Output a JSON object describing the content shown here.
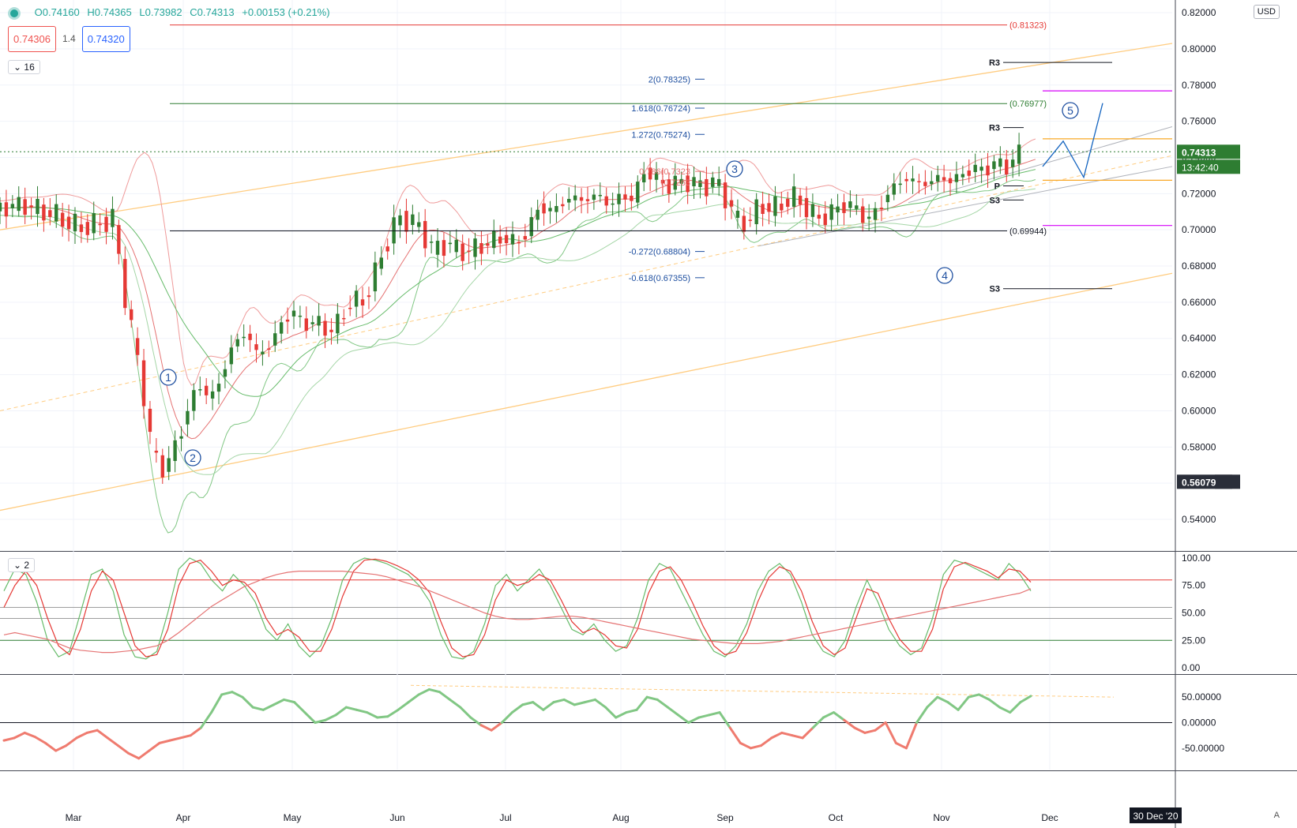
{
  "header": {
    "ohlc": {
      "open": "O0.74160",
      "high": "H0.74365",
      "low": "L0.73982",
      "close": "C0.74313",
      "change": "+0.00153 (+0.21%)"
    },
    "sell_price": "0.74306",
    "spread": "1.4",
    "buy_price": "0.74320",
    "main_pane_label": "16",
    "stoch_pane_label": "2",
    "currency": "USD",
    "auto_label": "A"
  },
  "colors": {
    "up": "#2e7d32",
    "down": "#e53935",
    "bb_red": "#ef9a9a",
    "bb_green": "#81c784",
    "fib": "#1e4fa0",
    "orange": "#ffcc80",
    "accent": "#26a69a"
  },
  "chart_data": [
    {
      "type": "candlestick",
      "symbol_pair": "",
      "x_ticks": [
        "Mar",
        "Apr",
        "May",
        "Jun",
        "Jul",
        "Aug",
        "Sep",
        "Oct",
        "Nov",
        "Dec"
      ],
      "x_highlight": "30 Dec '20",
      "y_ticks": [
        "0.82000",
        "0.80000",
        "0.78000",
        "0.76000",
        "0.74000",
        "0.72000",
        "0.70000",
        "0.68000",
        "0.66000",
        "0.64000",
        "0.62000",
        "0.60000",
        "0.58000",
        "0.56000",
        "0.54000"
      ],
      "ylim": [
        0.523,
        0.827
      ],
      "last_price": "0.74313",
      "countdown": "13:42:40",
      "crosshair_price": "0.56079",
      "crosshair_value": 0.5608,
      "close_path": [
        [
          0,
          0.712
        ],
        [
          6,
          0.714
        ],
        [
          14,
          0.708
        ],
        [
          20,
          0.701
        ],
        [
          25,
          0.703
        ],
        [
          29,
          0.706
        ],
        [
          32,
          0.663
        ],
        [
          36,
          0.62
        ],
        [
          39,
          0.577
        ],
        [
          42,
          0.567
        ],
        [
          45,
          0.581
        ],
        [
          48,
          0.6
        ],
        [
          51,
          0.615
        ],
        [
          54,
          0.606
        ],
        [
          57,
          0.621
        ],
        [
          60,
          0.638
        ],
        [
          63,
          0.643
        ],
        [
          66,
          0.631
        ],
        [
          69,
          0.636
        ],
        [
          72,
          0.648
        ],
        [
          75,
          0.655
        ],
        [
          78,
          0.647
        ],
        [
          81,
          0.65
        ],
        [
          84,
          0.643
        ],
        [
          87,
          0.65
        ],
        [
          90,
          0.661
        ],
        [
          93,
          0.66
        ],
        [
          96,
          0.676
        ],
        [
          99,
          0.693
        ],
        [
          102,
          0.707
        ],
        [
          105,
          0.705
        ],
        [
          108,
          0.7
        ],
        [
          111,
          0.688
        ],
        [
          114,
          0.693
        ],
        [
          117,
          0.689
        ],
        [
          120,
          0.688
        ],
        [
          123,
          0.691
        ],
        [
          126,
          0.694
        ],
        [
          129,
          0.696
        ],
        [
          132,
          0.692
        ],
        [
          135,
          0.699
        ],
        [
          138,
          0.713
        ],
        [
          141,
          0.71
        ],
        [
          144,
          0.715
        ],
        [
          147,
          0.718
        ],
        [
          150,
          0.716
        ],
        [
          153,
          0.72
        ],
        [
          156,
          0.713
        ],
        [
          159,
          0.719
        ],
        [
          162,
          0.717
        ],
        [
          165,
          0.733
        ],
        [
          168,
          0.728
        ],
        [
          171,
          0.724
        ],
        [
          174,
          0.727
        ],
        [
          177,
          0.726
        ],
        [
          180,
          0.724
        ],
        [
          183,
          0.727
        ],
        [
          186,
          0.717
        ],
        [
          189,
          0.704
        ],
        [
          192,
          0.706
        ],
        [
          195,
          0.714
        ],
        [
          198,
          0.711
        ],
        [
          201,
          0.716
        ],
        [
          204,
          0.718
        ],
        [
          207,
          0.71
        ],
        [
          210,
          0.706
        ],
        [
          213,
          0.71
        ],
        [
          216,
          0.714
        ],
        [
          219,
          0.712
        ],
        [
          222,
          0.705
        ],
        [
          225,
          0.712
        ],
        [
          228,
          0.722
        ],
        [
          231,
          0.728
        ],
        [
          234,
          0.727
        ],
        [
          237,
          0.725
        ],
        [
          240,
          0.729
        ],
        [
          243,
          0.727
        ],
        [
          246,
          0.73
        ],
        [
          249,
          0.734
        ],
        [
          252,
          0.733
        ],
        [
          255,
          0.737
        ],
        [
          258,
          0.735
        ],
        [
          261,
          0.743
        ]
      ],
      "levels": [
        {
          "label": "(0.81323)",
          "value": 0.81323
        },
        {
          "label": "(0.76977)",
          "value": 0.76977
        },
        {
          "label": "(0.69944)",
          "value": 0.69944
        }
      ],
      "fib_levels": [
        {
          "label": "2(0.78325)",
          "value": 0.78325
        },
        {
          "label": "1.618(0.76724)",
          "value": 0.76724
        },
        {
          "label": "1.272(0.75274)",
          "value": 0.75274
        },
        {
          "label": "0.786(0.7323",
          "value": 0.7323
        },
        {
          "label": "(0.7263",
          "value": 0.7263
        },
        {
          "label": "-0.272(0.68804)",
          "value": 0.68804
        },
        {
          "label": "-0.618(0.67355)",
          "value": 0.67355
        }
      ],
      "pivots": [
        {
          "label": "R3",
          "value": 0.7925
        },
        {
          "label": "R3",
          "value": 0.7565
        },
        {
          "label": "P",
          "value": 0.7243
        },
        {
          "label": "S3",
          "value": 0.7165
        },
        {
          "label": "S3",
          "value": 0.6675
        }
      ],
      "waves": [
        {
          "label": "1",
          "day": 40,
          "value": 0.6316
        },
        {
          "label": "2",
          "day": 46,
          "value": 0.5943
        },
        {
          "label": "3",
          "day": 164,
          "value": 0.7478
        },
        {
          "label": "4",
          "day": 223,
          "value": 0.6886
        },
        {
          "label": "5",
          "day": 262,
          "value": 0.7795
        }
      ]
    },
    {
      "type": "line",
      "y_ticks": [
        "100.00",
        "75.00",
        "50.00",
        "25.00",
        "0.00"
      ],
      "ylim": [
        -5,
        105
      ],
      "levels": [
        80,
        55,
        45,
        25
      ],
      "series": [
        {
          "values_k": [
            70,
            90,
            85,
            60,
            25,
            10,
            15,
            50,
            85,
            90,
            70,
            30,
            10,
            8,
            15,
            50,
            90,
            100,
            95,
            80,
            70,
            85,
            75,
            60,
            35,
            25,
            40,
            20,
            10,
            20,
            45,
            80,
            95,
            100,
            98,
            95,
            90,
            85,
            75,
            60,
            30,
            10,
            8,
            15,
            40,
            75,
            85,
            70,
            80,
            90,
            75,
            55,
            35,
            30,
            40,
            25,
            15,
            20,
            45,
            80,
            95,
            90,
            70,
            50,
            30,
            15,
            10,
            20,
            40,
            70,
            88,
            95,
            85,
            60,
            30,
            15,
            10,
            25,
            55,
            80,
            60,
            35,
            20,
            12,
            18,
            45,
            85,
            98,
            95,
            90,
            85,
            80,
            95,
            85,
            70
          ]
        },
        {
          "values_d": [
            55,
            75,
            88,
            75,
            45,
            20,
            12,
            35,
            70,
            88,
            80,
            50,
            20,
            10,
            12,
            35,
            75,
            95,
            98,
            88,
            75,
            80,
            78,
            68,
            45,
            30,
            35,
            28,
            15,
            15,
            35,
            65,
            88,
            98,
            99,
            97,
            93,
            88,
            80,
            68,
            42,
            18,
            10,
            12,
            30,
            62,
            80,
            75,
            78,
            85,
            80,
            62,
            42,
            32,
            36,
            30,
            20,
            18,
            35,
            68,
            88,
            92,
            80,
            60,
            38,
            20,
            12,
            15,
            32,
            60,
            82,
            92,
            88,
            70,
            42,
            20,
            12,
            18,
            45,
            72,
            68,
            45,
            26,
            15,
            15,
            35,
            72,
            92,
            96,
            92,
            88,
            82,
            90,
            88,
            78
          ]
        },
        {
          "values_slow": [
            30,
            32,
            30,
            28,
            26,
            22,
            18,
            16,
            15,
            14,
            14,
            15,
            16,
            18,
            20,
            25,
            32,
            40,
            48,
            56,
            62,
            68,
            74,
            78,
            82,
            85,
            87,
            88,
            88,
            88,
            88,
            88,
            87,
            86,
            85,
            83,
            80,
            77,
            74,
            70,
            66,
            62,
            58,
            54,
            50,
            47,
            45,
            44,
            44,
            45,
            46,
            47,
            47,
            46,
            44,
            42,
            40,
            38,
            36,
            34,
            32,
            30,
            28,
            26,
            25,
            24,
            23,
            22,
            22,
            22,
            23,
            24,
            26,
            28,
            30,
            32,
            34,
            36,
            38,
            40,
            42,
            44,
            46,
            48,
            50,
            52,
            54,
            56,
            58,
            60,
            62,
            64,
            66,
            68,
            72
          ]
        }
      ]
    },
    {
      "type": "line",
      "y_ticks": [
        "50.00000",
        "0.00000",
        "-50.00000"
      ],
      "ylim": [
        -92,
        92
      ],
      "levels": [
        0
      ],
      "values": [
        -35,
        -30,
        -20,
        -28,
        -40,
        -55,
        -45,
        -30,
        -20,
        -15,
        -30,
        -45,
        -60,
        -70,
        -55,
        -40,
        -35,
        -30,
        -25,
        -10,
        20,
        55,
        60,
        50,
        30,
        25,
        35,
        45,
        40,
        20,
        0,
        5,
        15,
        30,
        25,
        20,
        10,
        12,
        25,
        40,
        55,
        65,
        60,
        45,
        30,
        10,
        -5,
        -15,
        0,
        20,
        35,
        40,
        25,
        40,
        45,
        35,
        40,
        45,
        30,
        10,
        20,
        25,
        50,
        45,
        30,
        15,
        0,
        10,
        15,
        20,
        -10,
        -40,
        -50,
        -45,
        -30,
        -20,
        -25,
        -30,
        -10,
        10,
        20,
        5,
        -10,
        -20,
        -15,
        0,
        -40,
        -50,
        0,
        30,
        50,
        40,
        25,
        50,
        55,
        45,
        30,
        20,
        40,
        52
      ],
      "trend_label": ""
    }
  ]
}
